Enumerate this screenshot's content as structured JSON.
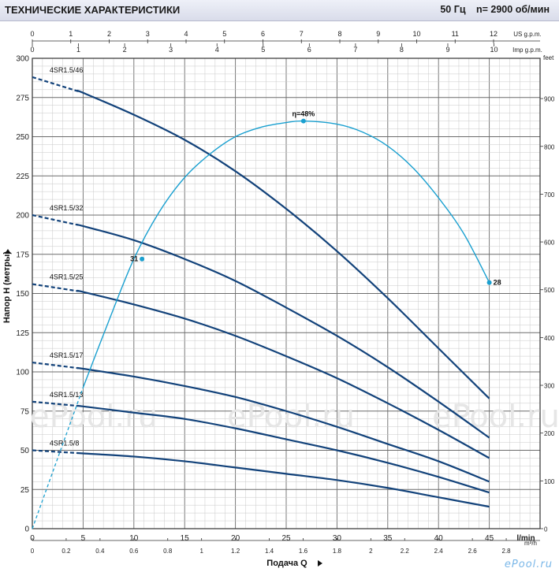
{
  "header": {
    "title": "ТЕХНИЧЕСКИЕ ХАРАКТЕРИСТИКИ",
    "frequency": "50 Гц",
    "speed": "n= 2900 об/мин"
  },
  "watermark": "ePool.ru",
  "logo_text": "ePool.ru",
  "chart_data": {
    "type": "line",
    "xlabel": "Подача Q",
    "ylabel": "Напор H (метры)",
    "x_unit": "l/min",
    "x_range": [
      0,
      50
    ],
    "x_ticks": [
      0,
      5,
      10,
      15,
      20,
      25,
      30,
      35,
      40,
      45
    ],
    "y_range": [
      0,
      300
    ],
    "y_ticks": [
      0,
      25,
      50,
      75,
      100,
      125,
      150,
      175,
      200,
      225,
      250,
      275,
      300
    ],
    "grid": true,
    "secondary_axes": {
      "m3h": {
        "unit": "m³/h",
        "ticks": [
          "0",
          "0.2",
          "0.4",
          "0.6",
          "0.8",
          "1",
          "1.2",
          "1.4",
          "1.6",
          "1.8",
          "2",
          "2.2",
          "2.4",
          "2.6",
          "2.8"
        ]
      },
      "us_gpm": {
        "unit": "US g.p.m.",
        "ticks": [
          "0",
          "1",
          "2",
          "3",
          "4",
          "5",
          "6",
          "7",
          "8",
          "9",
          "10",
          "11",
          "12"
        ]
      },
      "imp_gpm": {
        "unit": "Imp g.p.m.",
        "ticks": [
          "0",
          "1",
          "2",
          "3",
          "4",
          "5",
          "6",
          "7",
          "8",
          "9",
          "10"
        ]
      },
      "feet": {
        "unit": "feet",
        "ticks": [
          "0",
          "100",
          "200",
          "300",
          "400",
          "500",
          "600",
          "700",
          "800",
          "900"
        ]
      }
    },
    "series": [
      {
        "name": "4SR1.5/46",
        "x": [
          0,
          5,
          10,
          15,
          20,
          25,
          30,
          35,
          40,
          45
        ],
        "y": [
          288,
          278,
          264,
          248,
          228,
          204,
          177,
          147,
          115,
          83
        ]
      },
      {
        "name": "4SR1.5/32",
        "x": [
          0,
          5,
          10,
          15,
          20,
          25,
          30,
          35,
          40,
          45
        ],
        "y": [
          200,
          193,
          184,
          172,
          158,
          141,
          123,
          103,
          81,
          58
        ]
      },
      {
        "name": "4SR1.5/25",
        "x": [
          0,
          5,
          10,
          15,
          20,
          25,
          30,
          35,
          40,
          45
        ],
        "y": [
          156,
          151,
          143,
          134,
          123,
          110,
          96,
          80,
          63,
          45
        ]
      },
      {
        "name": "4SR1.5/17",
        "x": [
          0,
          5,
          10,
          15,
          20,
          25,
          30,
          35,
          40,
          45
        ],
        "y": [
          106,
          102,
          97,
          91,
          84,
          75,
          65,
          54,
          43,
          30
        ]
      },
      {
        "name": "4SR1.5/13",
        "x": [
          0,
          5,
          10,
          15,
          20,
          25,
          30,
          35,
          40,
          45
        ],
        "y": [
          81,
          78,
          74,
          70,
          64,
          57,
          50,
          42,
          33,
          23
        ]
      },
      {
        "name": "4SR1.5/8",
        "x": [
          0,
          5,
          10,
          15,
          20,
          25,
          30,
          35,
          40,
          45
        ],
        "y": [
          50,
          48,
          46,
          43,
          39,
          35,
          31,
          26,
          20,
          14
        ]
      }
    ],
    "efficiency_curve": {
      "label": "η=48%",
      "x": [
        0,
        2.5,
        5,
        7.5,
        10,
        12.5,
        15,
        17.5,
        20,
        22.5,
        25,
        26.7,
        30,
        32.5,
        35,
        37.5,
        40,
        42.5,
        45
      ],
      "y": [
        0,
        45,
        90,
        132,
        172,
        202,
        224,
        239,
        250,
        256,
        259,
        260,
        258,
        253,
        244,
        230,
        211,
        188,
        157
      ],
      "markers": [
        {
          "x": 10.8,
          "y": 172,
          "label": "31"
        },
        {
          "x": 26.7,
          "y": 260,
          "label": ""
        },
        {
          "x": 45,
          "y": 157,
          "label": "28"
        }
      ]
    }
  }
}
